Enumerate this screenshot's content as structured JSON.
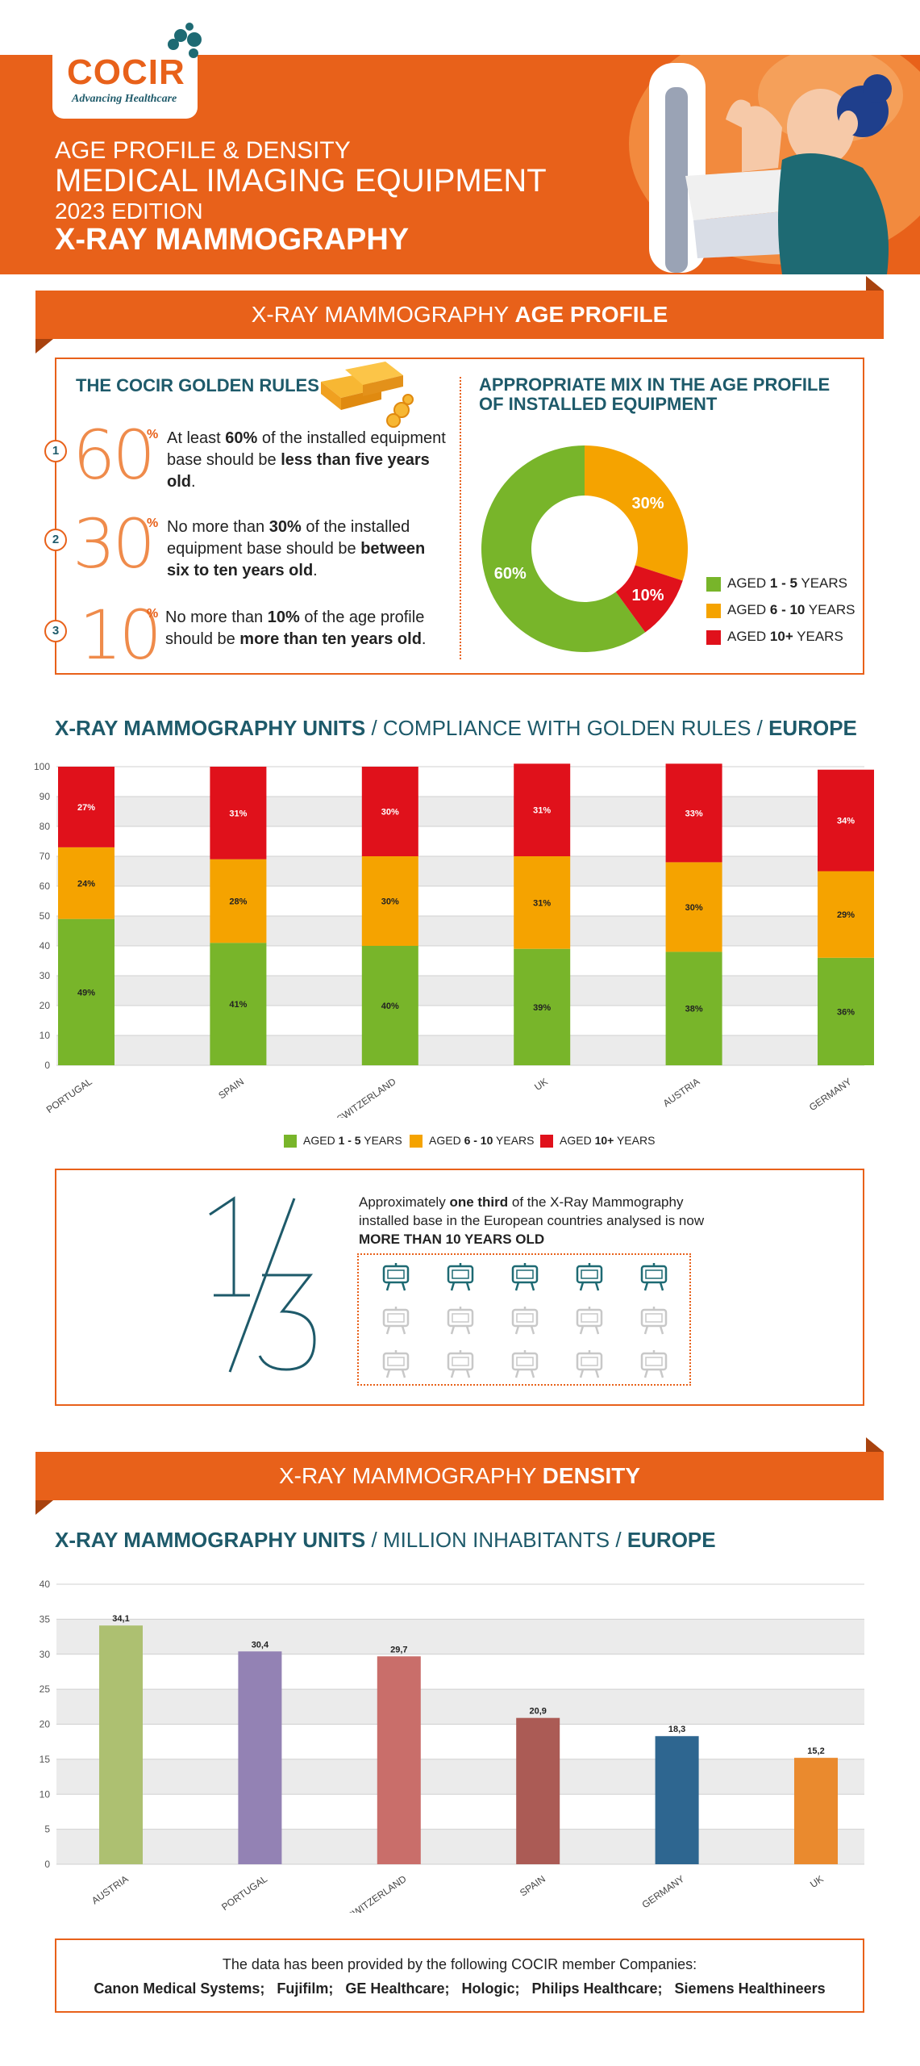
{
  "header": {
    "logo_text": "COCIR",
    "logo_tagline": "Advancing Healthcare",
    "line1": "AGE PROFILE & DENSITY",
    "line2": "MEDICAL IMAGING EQUIPMENT",
    "line3": "2023 EDITION",
    "line4": "X-RAY MAMMOGRAPHY"
  },
  "age_banner": {
    "normal": "X-RAY MAMMOGRAPHY ",
    "bold": "AGE PROFILE"
  },
  "golden_rules": {
    "title": "THE COCIR GOLDEN RULES",
    "rules": [
      {
        "num": "1",
        "big": "60",
        "pct": "%",
        "t1": "At least ",
        "b1": "60%",
        "t2": " of the installed equipment base should be ",
        "b2": "less than five years old",
        "t3": "."
      },
      {
        "num": "2",
        "big": "30",
        "pct": "%",
        "t1": "No more than ",
        "b1": "30%",
        "t2": " of the installed equipment base should be ",
        "b2": "between six to ten years old",
        "t3": "."
      },
      {
        "num": "3",
        "big": "10",
        "pct": "%",
        "t1": "No more than ",
        "b1": "10%",
        "t2": " of the age profile should be ",
        "b2": "more than ten years old",
        "t3": "."
      }
    ]
  },
  "mix": {
    "title_line1": "APPROPRIATE MIX IN THE AGE PROFILE",
    "title_line2": "OF INSTALLED EQUIPMENT"
  },
  "colors": {
    "green": "#78b52a",
    "amber": "#f5a300",
    "red": "#e0111b",
    "orange": "#e8611a",
    "teal": "#1e5a6a"
  },
  "legend": [
    {
      "pre": "AGED ",
      "bold": "1 - 5",
      "post": " YEARS",
      "color": "#78b52a"
    },
    {
      "pre": "AGED ",
      "bold": "6 - 10",
      "post": " YEARS",
      "color": "#f5a300"
    },
    {
      "pre": "AGED ",
      "bold": "10+",
      "post": " YEARS",
      "color": "#e0111b"
    }
  ],
  "compliance_title": {
    "b1": "X-RAY MAMMOGRAPHY UNITS",
    "n1": " / COMPLIANCE WITH GOLDEN RULES / ",
    "b2": "EUROPE"
  },
  "third": {
    "big": "1/3",
    "t1": "Approximately ",
    "b1": "one third",
    "t2": " of the X-Ray Mammography installed base in the European countries analysed is now ",
    "b2": "MORE THAN 10 YEARS OLD"
  },
  "density_banner": {
    "normal": "X-RAY MAMMOGRAPHY ",
    "bold": "DENSITY"
  },
  "density_title": {
    "b1": "X-RAY MAMMOGRAPHY UNITS",
    "n1": " / MILLION INHABITANTS / ",
    "b2": "EUROPE"
  },
  "footer": {
    "line1": "The data has been provided by the following COCIR member Companies:",
    "companies": [
      "Canon Medical Systems",
      "Fujifilm",
      "GE Healthcare",
      "Hologic",
      "Philips Healthcare",
      "Siemens Healthineers"
    ]
  },
  "chart_data": [
    {
      "type": "pie",
      "labels": [
        "AGED 1 - 5 YEARS",
        "AGED 6 - 10 YEARS",
        "AGED 10+ YEARS"
      ],
      "values": [
        60,
        30,
        10
      ],
      "value_labels": [
        "60%",
        "30%",
        "10%"
      ],
      "colors": [
        "#78b52a",
        "#f5a300",
        "#e0111b"
      ]
    },
    {
      "type": "bar",
      "stacked": true,
      "categories": [
        "PORTUGAL",
        "SPAIN",
        "SWITZERLAND",
        "UK",
        "AUSTRIA",
        "GERMANY"
      ],
      "series": [
        {
          "name": "AGED 1 - 5 YEARS",
          "values": [
            49,
            41,
            40,
            39,
            38,
            36
          ],
          "color": "#78b52a"
        },
        {
          "name": "AGED 6 - 10 YEARS",
          "values": [
            24,
            28,
            30,
            31,
            30,
            29
          ],
          "color": "#f5a300"
        },
        {
          "name": "AGED 10+ YEARS",
          "values": [
            27,
            31,
            30,
            31,
            33,
            34
          ],
          "color": "#e0111b"
        }
      ],
      "ylim": [
        0,
        100
      ],
      "yticks": [
        0,
        10,
        20,
        30,
        40,
        50,
        60,
        70,
        80,
        90,
        100
      ],
      "legend_position": "bottom"
    },
    {
      "type": "bar",
      "categories": [
        "AUSTRIA",
        "PORTUGAL",
        "SWITZERLAND",
        "SPAIN",
        "GERMANY",
        "UK"
      ],
      "values": [
        34.1,
        30.4,
        29.7,
        20.9,
        18.3,
        15.2
      ],
      "value_labels": [
        "34,1",
        "30,4",
        "29,7",
        "20,9",
        "18,3",
        "15,2"
      ],
      "colors": [
        "#adc071",
        "#9382b4",
        "#c96e6a",
        "#ab5b55",
        "#2e6690",
        "#ea8a2e"
      ],
      "ylim": [
        0,
        40
      ],
      "yticks": [
        0,
        5,
        10,
        15,
        20,
        25,
        30,
        35,
        40
      ]
    }
  ]
}
